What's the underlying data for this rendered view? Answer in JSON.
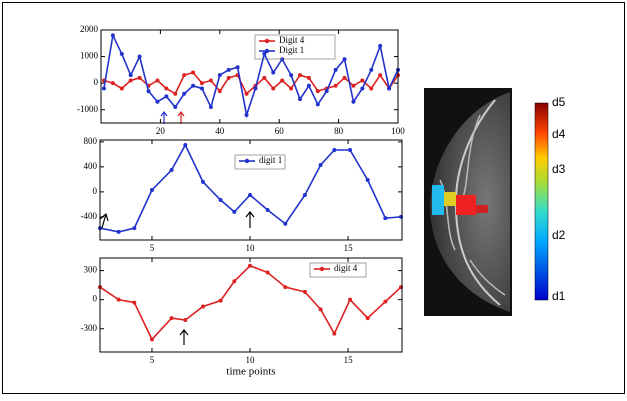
{
  "chart_data": [
    {
      "type": "line",
      "x": [
        1,
        4,
        7,
        10,
        13,
        16,
        19,
        22,
        25,
        28,
        31,
        34,
        37,
        40,
        43,
        46,
        49,
        52,
        55,
        58,
        61,
        64,
        67,
        70,
        73,
        76,
        79,
        82,
        85,
        88,
        91,
        94,
        97,
        100
      ],
      "series": [
        {
          "name": "Digit 4",
          "color": "#dd2222",
          "values": [
            100,
            0,
            -200,
            100,
            200,
            -100,
            100,
            -200,
            -400,
            300,
            400,
            0,
            100,
            -300,
            200,
            300,
            -400,
            -100,
            200,
            -200,
            100,
            -200,
            300,
            200,
            -300,
            -200,
            -100,
            200,
            -100,
            100,
            -200,
            300,
            -200,
            300
          ]
        },
        {
          "name": "Digit 1",
          "color": "#2233cc",
          "values": [
            -200,
            1800,
            1100,
            300,
            1000,
            -300,
            -700,
            -500,
            -900,
            -400,
            -100,
            -200,
            -900,
            300,
            500,
            600,
            -1200,
            -200,
            1100,
            400,
            900,
            300,
            -600,
            -100,
            -800,
            -300,
            500,
            900,
            -700,
            -200,
            500,
            1400,
            -200,
            500
          ]
        }
      ],
      "xlim": [
        0,
        100
      ],
      "xticks": [
        20,
        40,
        60,
        80,
        100
      ],
      "ylim": [
        -1500,
        2000
      ],
      "yticks": [
        2000,
        1000,
        0,
        -1000
      ]
    },
    {
      "type": "line",
      "x": [
        2.35,
        3.3,
        4.1,
        5.0,
        6.0,
        6.7,
        7.6,
        8.5,
        9.2,
        10.0,
        10.9,
        11.8,
        12.8,
        13.6,
        14.3,
        15.1,
        16.0,
        16.9,
        17.7
      ],
      "series": [
        {
          "name": "digit 1",
          "color": "#2233cc",
          "values": [
            -580,
            -640,
            -580,
            30,
            350,
            750,
            160,
            -130,
            -320,
            -50,
            -290,
            -510,
            -50,
            430,
            670,
            670,
            190,
            -420,
            -400
          ]
        }
      ],
      "xlim": [
        2.35,
        17.75
      ],
      "xticks": [
        5,
        10,
        15
      ],
      "ylim": [
        -770,
        830
      ],
      "yticks": [
        800,
        400,
        0,
        -400
      ]
    },
    {
      "type": "line",
      "x": [
        2.35,
        3.3,
        4.1,
        5.0,
        6.0,
        6.7,
        7.6,
        8.5,
        9.2,
        10.0,
        10.9,
        11.8,
        12.8,
        13.6,
        14.3,
        15.1,
        16.0,
        16.9,
        17.7
      ],
      "series": [
        {
          "name": "digit 4",
          "color": "#dd2222",
          "values": [
            130,
            0,
            -30,
            -410,
            -190,
            -210,
            -70,
            -10,
            190,
            350,
            280,
            130,
            80,
            -100,
            -350,
            0,
            -190,
            -20,
            130
          ]
        }
      ],
      "xlim": [
        2.35,
        17.75
      ],
      "xticks": [
        5,
        10,
        15
      ],
      "ylim": [
        -540,
        430
      ],
      "yticks": [
        300,
        0,
        -300
      ],
      "xlabel": "time points"
    }
  ],
  "colorbar": {
    "labels": [
      "d5",
      "d4",
      "d3",
      "d2",
      "d1"
    ]
  }
}
